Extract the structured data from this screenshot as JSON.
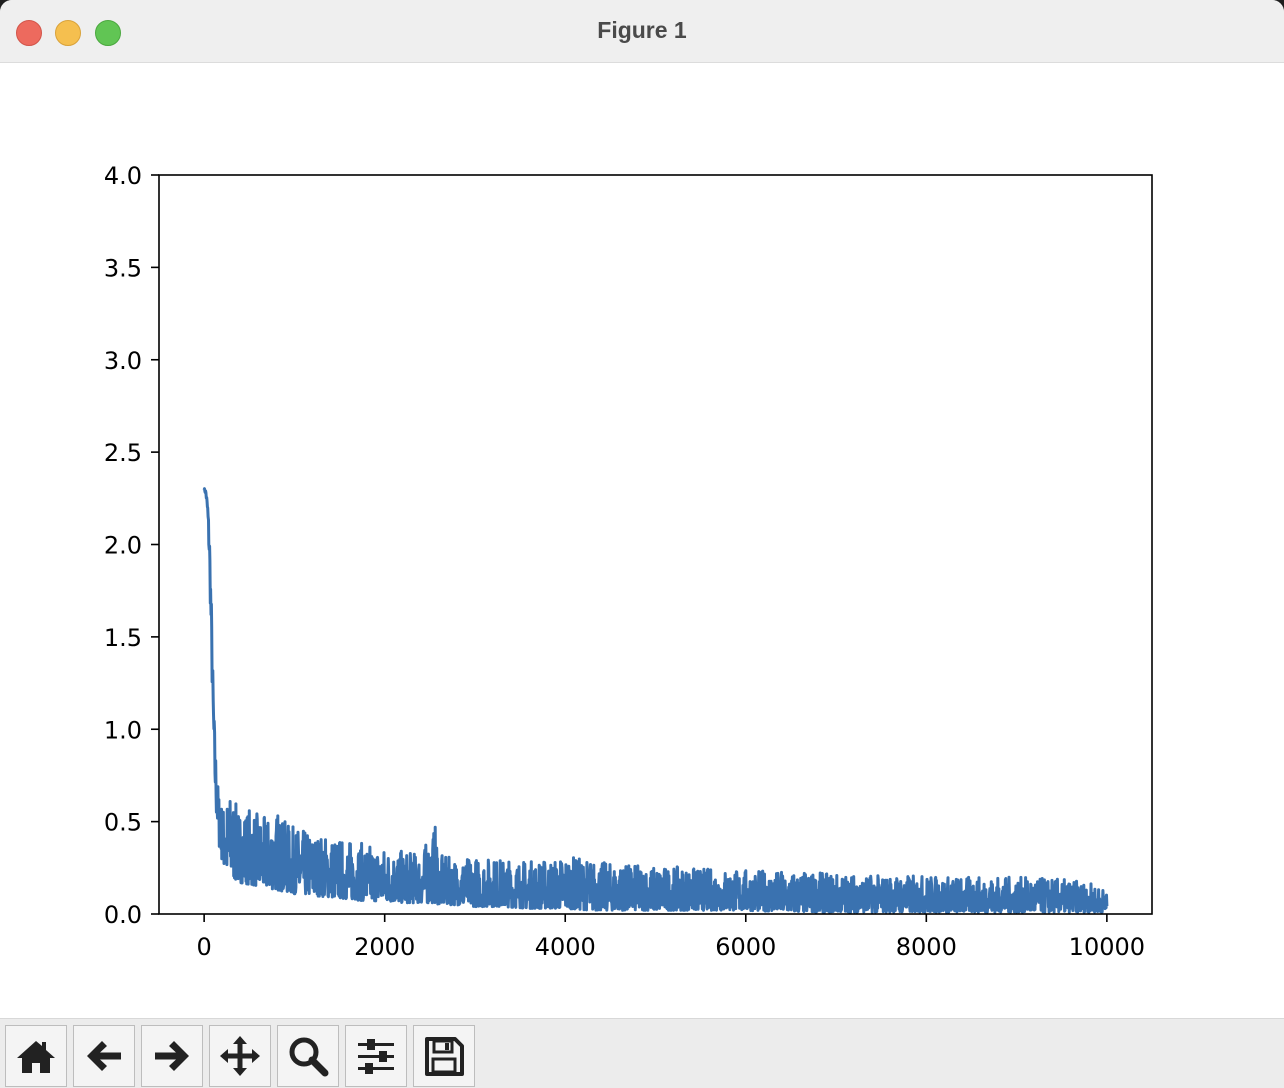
{
  "window": {
    "title": "Figure 1"
  },
  "toolbar": {
    "buttons": [
      {
        "name": "home-button",
        "icon": "home-icon"
      },
      {
        "name": "back-button",
        "icon": "arrow-left-icon"
      },
      {
        "name": "forward-button",
        "icon": "arrow-right-icon"
      },
      {
        "name": "pan-button",
        "icon": "move-icon"
      },
      {
        "name": "zoom-button",
        "icon": "search-icon"
      },
      {
        "name": "configure-subplots-button",
        "icon": "sliders-icon"
      },
      {
        "name": "save-button",
        "icon": "floppy-disk-icon"
      }
    ]
  },
  "chart_data": {
    "type": "line",
    "title": "",
    "xlabel": "",
    "ylabel": "",
    "xlim": [
      -500,
      10500
    ],
    "ylim": [
      0,
      4.0
    ],
    "grid": false,
    "color": "#3a72b0",
    "x_ticks": [
      0,
      2000,
      4000,
      6000,
      8000,
      10000
    ],
    "x_tick_labels": [
      "0",
      "2000",
      "4000",
      "6000",
      "8000",
      "10000"
    ],
    "y_ticks": [
      0.0,
      0.5,
      1.0,
      1.5,
      2.0,
      2.5,
      3.0,
      3.5,
      4.0
    ],
    "y_tick_labels": [
      "0.0",
      "0.5",
      "1.0",
      "1.5",
      "2.0",
      "2.5",
      "3.0",
      "3.5",
      "4.0"
    ],
    "series": [
      {
        "x": [
          0,
          20,
          40,
          60,
          80,
          100,
          120,
          140,
          160,
          180,
          200,
          250,
          300,
          350,
          400,
          500,
          600,
          700,
          800,
          900,
          1000,
          1200,
          1400,
          1600,
          1800,
          2000,
          2200,
          2400,
          2570,
          2600,
          2800,
          3000,
          3300,
          3600,
          3900,
          4000,
          4300,
          4600,
          5000,
          5500,
          6000,
          6500,
          7000,
          7500,
          8000,
          8500,
          9000,
          9500,
          9800,
          10000
        ],
        "y": [
          2.3,
          2.28,
          2.18,
          1.95,
          1.55,
          1.1,
          0.8,
          0.62,
          0.52,
          0.46,
          0.43,
          0.4,
          0.38,
          0.36,
          0.35,
          0.33,
          0.31,
          0.3,
          0.28,
          0.27,
          0.26,
          0.24,
          0.22,
          0.21,
          0.2,
          0.19,
          0.18,
          0.17,
          0.2,
          0.16,
          0.15,
          0.15,
          0.14,
          0.13,
          0.13,
          0.12,
          0.12,
          0.11,
          0.11,
          0.1,
          0.09,
          0.09,
          0.08,
          0.08,
          0.08,
          0.07,
          0.07,
          0.07,
          0.06,
          0.06
        ],
        "upper": [
          2.3,
          2.29,
          2.22,
          2.05,
          1.7,
          1.25,
          0.95,
          0.75,
          0.65,
          0.6,
          0.58,
          0.62,
          0.66,
          0.6,
          0.56,
          0.58,
          0.54,
          0.52,
          0.57,
          0.5,
          0.47,
          0.44,
          0.42,
          0.4,
          0.38,
          0.36,
          0.34,
          0.33,
          0.49,
          0.32,
          0.3,
          0.31,
          0.3,
          0.29,
          0.3,
          0.32,
          0.29,
          0.27,
          0.26,
          0.25,
          0.24,
          0.23,
          0.22,
          0.21,
          0.21,
          0.2,
          0.2,
          0.19,
          0.17,
          0.13
        ],
        "lower": [
          2.29,
          2.26,
          2.12,
          1.85,
          1.4,
          0.95,
          0.65,
          0.45,
          0.36,
          0.3,
          0.27,
          0.23,
          0.21,
          0.18,
          0.17,
          0.16,
          0.15,
          0.14,
          0.13,
          0.12,
          0.11,
          0.1,
          0.09,
          0.08,
          0.07,
          0.07,
          0.06,
          0.06,
          0.06,
          0.05,
          0.05,
          0.04,
          0.04,
          0.03,
          0.03,
          0.03,
          0.02,
          0.02,
          0.02,
          0.02,
          0.02,
          0.01,
          0.01,
          0.01,
          0.01,
          0.01,
          0.01,
          0.01,
          0.01,
          0.01
        ]
      }
    ]
  }
}
